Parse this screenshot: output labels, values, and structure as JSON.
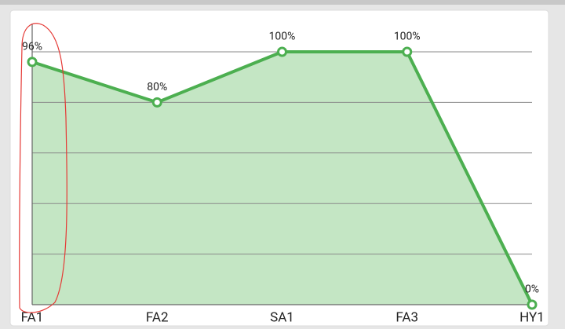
{
  "chart_data": {
    "type": "area",
    "categories": [
      "FA1",
      "FA2",
      "SA1",
      "FA3",
      "HY1"
    ],
    "values": [
      96,
      80,
      100,
      100,
      0
    ],
    "value_labels": [
      "96%",
      "80%",
      "100%",
      "100%",
      "0%"
    ],
    "color": "#4caf50",
    "fill_color": "#c4e6c4",
    "ylim": [
      0,
      100
    ],
    "yticks": [
      0,
      20,
      40,
      60,
      80,
      100
    ],
    "grid": true
  }
}
